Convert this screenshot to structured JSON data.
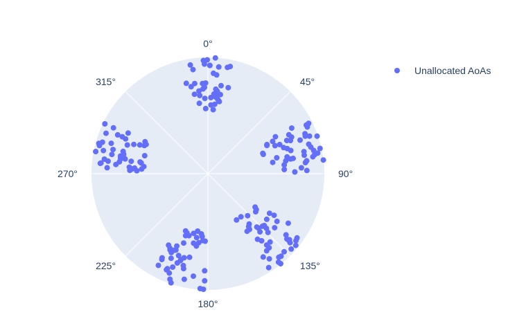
{
  "chart_data": {
    "type": "scatter",
    "subtype": "polar",
    "angular_axis": {
      "direction": "clockwise",
      "rotation_zero": "top",
      "tick_labels": [
        "0°",
        "45°",
        "90°",
        "135°",
        "180°",
        "225°",
        "270°",
        "315°"
      ],
      "tick_values": [
        0,
        45,
        90,
        135,
        180,
        225,
        270,
        315
      ]
    },
    "radial_axis": {
      "range": [
        0,
        1
      ],
      "tick_labels_visible": false
    },
    "grid": true,
    "legend": {
      "position": "top-right",
      "entries": [
        "Unallocated AoAs"
      ]
    },
    "colors": {
      "marker": "#636efa",
      "polar_bg": "#e5ecf6",
      "grid": "#ffffff",
      "text": "#2a3f5f"
    },
    "series": [
      {
        "name": "Unallocated AoAs",
        "clusters": [
          {
            "center_theta": 0,
            "theta_spread": 28,
            "r_range": [
              0.55,
              1.0
            ],
            "count": 42
          },
          {
            "center_theta": 75,
            "theta_spread": 28,
            "r_range": [
              0.5,
              1.0
            ],
            "count": 48
          },
          {
            "center_theta": 135,
            "theta_spread": 28,
            "r_range": [
              0.45,
              1.0
            ],
            "count": 46
          },
          {
            "center_theta": 195,
            "theta_spread": 28,
            "r_range": [
              0.5,
              1.0
            ],
            "count": 46
          },
          {
            "center_theta": 285,
            "theta_spread": 26,
            "r_range": [
              0.55,
              1.0
            ],
            "count": 46
          }
        ]
      }
    ]
  }
}
